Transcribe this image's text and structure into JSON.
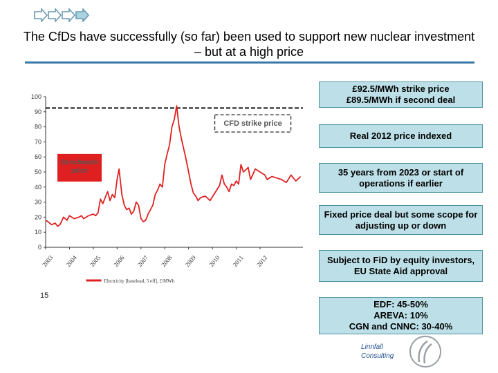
{
  "slide": {
    "title": "The CfDs have successfully (so far) been used to support new nuclear investment – but at a high price",
    "page_number": "15",
    "accent_color": "#3a78a8"
  },
  "callouts": [
    "£92.5/MWh strike price\n£89.5/MWh if second deal",
    "Real 2012 price indexed",
    "35 years from 2023 or start of operations if earlier",
    "Fixed price deal but some scope for adjusting up or down",
    "Subject to FiD by equity investors, EU State Aid approval",
    "EDF: 45-50%\nAREVA: 10%\nCGN and CNNC: 30-40%"
  ],
  "logo": {
    "text": "Linnfall\nConsulting"
  },
  "chart_data": {
    "type": "line",
    "ylim": [
      0,
      100
    ],
    "y_ticks": [
      0,
      10,
      20,
      30,
      40,
      50,
      60,
      70,
      80,
      90,
      100
    ],
    "x_ticks": [
      "2003",
      "2004",
      "2005",
      "2006",
      "2007",
      "2008",
      "2009",
      "2010",
      "2011",
      "2012"
    ],
    "xlim": [
      2003,
      2013.8
    ],
    "grid": false,
    "legend": "bottom",
    "series": [
      {
        "name": "Electricity [baseload, 5 eff], £/MWh",
        "color": "#e02020",
        "x": [
          2003.0,
          2003.1,
          2003.25,
          2003.4,
          2003.5,
          2003.6,
          2003.75,
          2003.9,
          2004.0,
          2004.2,
          2004.4,
          2004.5,
          2004.6,
          2004.8,
          2005.0,
          2005.1,
          2005.2,
          2005.3,
          2005.4,
          2005.5,
          2005.6,
          2005.7,
          2005.8,
          2005.9,
          2006.0,
          2006.08,
          2006.2,
          2006.3,
          2006.4,
          2006.5,
          2006.6,
          2006.7,
          2006.8,
          2006.9,
          2007.0,
          2007.1,
          2007.2,
          2007.3,
          2007.4,
          2007.5,
          2007.6,
          2007.7,
          2007.8,
          2007.9,
          2008.0,
          2008.1,
          2008.2,
          2008.3,
          2008.4,
          2008.5,
          2008.6,
          2008.7,
          2008.8,
          2008.9,
          2009.0,
          2009.1,
          2009.2,
          2009.3,
          2009.4,
          2009.5,
          2009.7,
          2009.9,
          2010.1,
          2010.3,
          2010.4,
          2010.5,
          2010.6,
          2010.7,
          2010.8,
          2010.9,
          2011.0,
          2011.1,
          2011.2,
          2011.3,
          2011.5,
          2011.6,
          2011.8,
          2012.0,
          2012.2,
          2012.3,
          2012.5,
          2012.7,
          2012.9,
          2013.1,
          2013.3,
          2013.5,
          2013.7
        ],
        "values": [
          18,
          17,
          15,
          16,
          14,
          15,
          20,
          18,
          21,
          19,
          20,
          21,
          19,
          21,
          22,
          21,
          23,
          32,
          29,
          33,
          37,
          31,
          35,
          33,
          45,
          52,
          35,
          28,
          25,
          26,
          22,
          24,
          30,
          28,
          19,
          17,
          18,
          22,
          25,
          28,
          35,
          38,
          42,
          40,
          55,
          62,
          68,
          80,
          85,
          94,
          80,
          72,
          65,
          58,
          50,
          42,
          36,
          34,
          31,
          33,
          34,
          31,
          36,
          41,
          48,
          42,
          40,
          37,
          42,
          41,
          44,
          42,
          55,
          50,
          53,
          45,
          52,
          50,
          48,
          45,
          47,
          46,
          45,
          43,
          48,
          44,
          47
        ]
      }
    ],
    "reference_line": {
      "value": 92.5,
      "label": "CFD strike price"
    },
    "annotation": {
      "label": "Benchmark\nprice"
    }
  }
}
